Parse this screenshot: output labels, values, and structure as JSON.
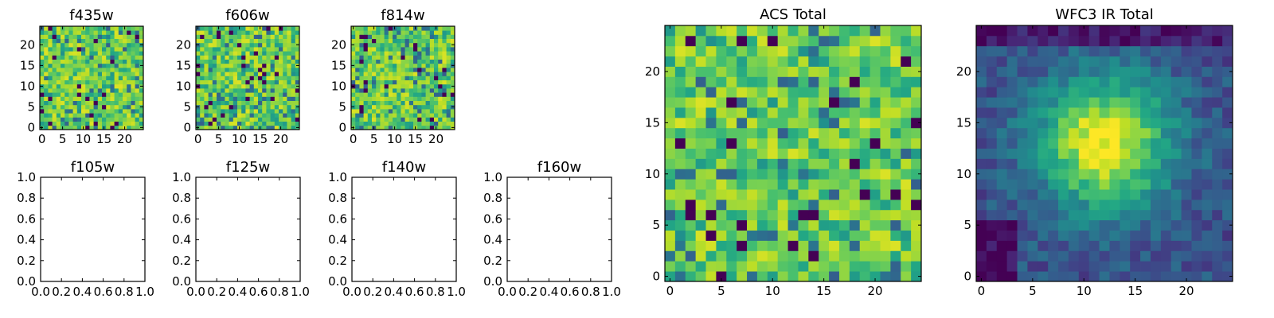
{
  "chart_data": [
    {
      "id": "f435w",
      "type": "heatmap",
      "title": "f435w",
      "grid_size": 25,
      "xticks": [
        0,
        5,
        10,
        15,
        20
      ],
      "yticks": [
        0,
        5,
        10,
        15,
        20
      ],
      "ticks_right_side": false,
      "field": "noise",
      "seed": 11
    },
    {
      "id": "f606w",
      "type": "heatmap",
      "title": "f606w",
      "grid_size": 25,
      "xticks": [
        0,
        5,
        10,
        15,
        20
      ],
      "yticks": [
        0,
        5,
        10,
        15,
        20
      ],
      "ticks_right_side": false,
      "field": "noise",
      "seed": 23
    },
    {
      "id": "f814w",
      "type": "heatmap",
      "title": "f814w",
      "grid_size": 25,
      "xticks": [
        0,
        5,
        10,
        15,
        20
      ],
      "yticks": [
        0,
        5,
        10,
        15,
        20
      ],
      "ticks_right_side": false,
      "field": "noise",
      "seed": 37
    },
    {
      "id": "f105w",
      "type": "empty",
      "title": "f105w",
      "xticks": [
        "0.0",
        "0.2",
        "0.4",
        "0.6",
        "0.8",
        "1.0"
      ],
      "yticks": [
        "0.0",
        "0.2",
        "0.4",
        "0.6",
        "0.8",
        "1.0"
      ],
      "xlim": [
        0,
        1
      ],
      "ylim": [
        0,
        1
      ]
    },
    {
      "id": "f125w",
      "type": "empty",
      "title": "f125w",
      "xticks": [
        "0.0",
        "0.2",
        "0.4",
        "0.6",
        "0.8",
        "1.0"
      ],
      "yticks": [
        "0.0",
        "0.2",
        "0.4",
        "0.6",
        "0.8",
        "1.0"
      ],
      "xlim": [
        0,
        1
      ],
      "ylim": [
        0,
        1
      ]
    },
    {
      "id": "f140w",
      "type": "empty",
      "title": "f140w",
      "xticks": [
        "0.0",
        "0.2",
        "0.4",
        "0.6",
        "0.8",
        "1.0"
      ],
      "yticks": [
        "0.0",
        "0.2",
        "0.4",
        "0.6",
        "0.8",
        "1.0"
      ],
      "xlim": [
        0,
        1
      ],
      "ylim": [
        0,
        1
      ]
    },
    {
      "id": "f160w",
      "type": "empty",
      "title": "f160w",
      "xticks": [
        "0.0",
        "0.2",
        "0.4",
        "0.6",
        "0.8",
        "1.0"
      ],
      "yticks": [
        "0.0",
        "0.2",
        "0.4",
        "0.6",
        "0.8",
        "1.0"
      ],
      "xlim": [
        0,
        1
      ],
      "ylim": [
        0,
        1
      ]
    },
    {
      "id": "acs_total",
      "type": "heatmap",
      "title": "ACS Total",
      "grid_size": 25,
      "xticks": [
        0,
        5,
        10,
        15,
        20
      ],
      "yticks": [
        0,
        5,
        10,
        15,
        20
      ],
      "field": "noise",
      "seed": 53
    },
    {
      "id": "wfc3_ir_total",
      "type": "heatmap",
      "title": "WFC3 IR Total",
      "grid_size": 25,
      "xticks": [
        0,
        5,
        10,
        15,
        20
      ],
      "yticks": [
        0,
        5,
        10,
        15,
        20
      ],
      "field": "gaussian_source",
      "source_center": [
        12,
        13
      ],
      "source_sigma": 4.5,
      "seed": 71
    }
  ],
  "colors": {
    "colormap": "viridis",
    "frame": "#000000",
    "background": "#ffffff"
  }
}
